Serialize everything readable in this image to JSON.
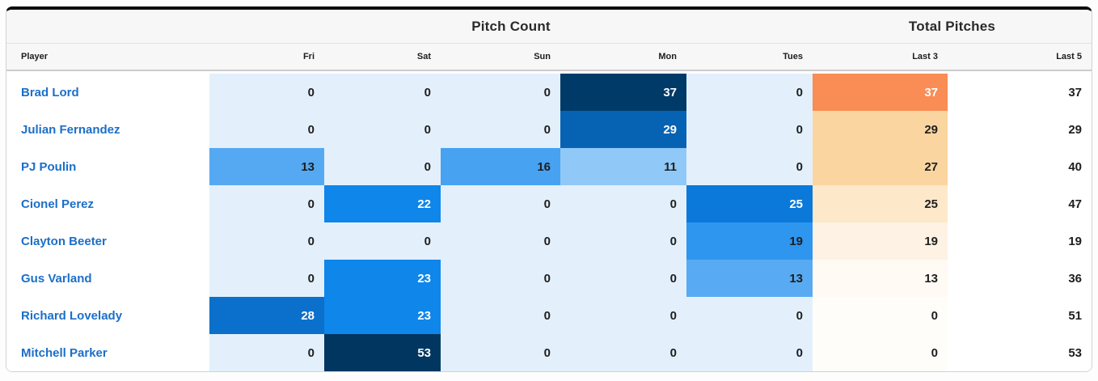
{
  "card": {
    "group_headers": {
      "pitch_count": "Pitch Count",
      "total_pitches": "Total Pitches"
    },
    "columns": [
      "Player",
      "Fri",
      "Sat",
      "Sun",
      "Mon",
      "Tues",
      "Last 3",
      "Last 5"
    ]
  },
  "colors": {
    "accent_link": "#1b6fc8",
    "header_bg": "#f7f7f7",
    "card_top_border": "#0d0d0d",
    "blue_scale_low": "#e3f0fc",
    "blue_scale_high": "#00365f",
    "orange_scale_low": "#fffdfa",
    "orange_scale_high": "#fa8c56"
  },
  "chart_data": {
    "type": "heatmap",
    "title": "Pitch Count",
    "subtitle": "Total Pitches",
    "rows": [
      "Brad Lord",
      "Julian Fernandez",
      "PJ Poulin",
      "Cionel Perez",
      "Clayton Beeter",
      "Gus Varland",
      "Richard Lovelady",
      "Mitchell Parker"
    ],
    "columns": [
      "Fri",
      "Sat",
      "Sun",
      "Mon",
      "Tues"
    ],
    "values": [
      [
        0,
        0,
        0,
        37,
        0
      ],
      [
        0,
        0,
        0,
        29,
        0
      ],
      [
        13,
        0,
        16,
        11,
        0
      ],
      [
        0,
        22,
        0,
        0,
        25
      ],
      [
        0,
        0,
        0,
        0,
        19
      ],
      [
        0,
        23,
        0,
        0,
        13
      ],
      [
        28,
        23,
        0,
        0,
        0
      ],
      [
        0,
        53,
        0,
        0,
        0
      ]
    ],
    "last_3": [
      37,
      29,
      27,
      25,
      19,
      13,
      0,
      0
    ],
    "last_5": [
      37,
      29,
      40,
      47,
      19,
      36,
      51,
      53
    ],
    "legend_position": "none",
    "grid": false,
    "palettes": {
      "day_columns": "blues",
      "last_3_column": "oranges",
      "last_5_column": "white"
    }
  },
  "table": {
    "rows": [
      {
        "player": "Brad Lord",
        "cells": [
          {
            "v": "0",
            "bg": "#e3f0fc",
            "fg": "#1e1e1e"
          },
          {
            "v": "0",
            "bg": "#e3f0fc",
            "fg": "#1e1e1e"
          },
          {
            "v": "0",
            "bg": "#e3f0fc",
            "fg": "#1e1e1e"
          },
          {
            "v": "37",
            "bg": "#003a68",
            "fg": "#ffffff"
          },
          {
            "v": "0",
            "bg": "#e3f0fc",
            "fg": "#1e1e1e"
          }
        ],
        "last3": {
          "v": "37",
          "bg": "#fa8c56",
          "fg": "#ffffff"
        },
        "last5": "37"
      },
      {
        "player": "Julian Fernandez",
        "cells": [
          {
            "v": "0",
            "bg": "#e3f0fc",
            "fg": "#1e1e1e"
          },
          {
            "v": "0",
            "bg": "#e3f0fc",
            "fg": "#1e1e1e"
          },
          {
            "v": "0",
            "bg": "#e3f0fc",
            "fg": "#1e1e1e"
          },
          {
            "v": "29",
            "bg": "#0663b4",
            "fg": "#ffffff"
          },
          {
            "v": "0",
            "bg": "#e3f0fc",
            "fg": "#1e1e1e"
          }
        ],
        "last3": {
          "v": "29",
          "bg": "#fbd5a0",
          "fg": "#1e1e1e"
        },
        "last5": "29"
      },
      {
        "player": "PJ Poulin",
        "cells": [
          {
            "v": "13",
            "bg": "#55a9f2",
            "fg": "#1e1e1e"
          },
          {
            "v": "0",
            "bg": "#e3f0fc",
            "fg": "#1e1e1e"
          },
          {
            "v": "16",
            "bg": "#47a2f1",
            "fg": "#1e1e1e"
          },
          {
            "v": "11",
            "bg": "#90c8f7",
            "fg": "#1e1e1e"
          },
          {
            "v": "0",
            "bg": "#e3f0fc",
            "fg": "#1e1e1e"
          }
        ],
        "last3": {
          "v": "27",
          "bg": "#fbd5a0",
          "fg": "#1e1e1e"
        },
        "last5": "40"
      },
      {
        "player": "Cionel Perez",
        "cells": [
          {
            "v": "0",
            "bg": "#e3f0fc",
            "fg": "#1e1e1e"
          },
          {
            "v": "22",
            "bg": "#0e86ea",
            "fg": "#ffffff"
          },
          {
            "v": "0",
            "bg": "#e3f0fc",
            "fg": "#1e1e1e"
          },
          {
            "v": "0",
            "bg": "#e3f0fc",
            "fg": "#1e1e1e"
          },
          {
            "v": "25",
            "bg": "#0b79da",
            "fg": "#ffffff"
          }
        ],
        "last3": {
          "v": "25",
          "bg": "#fde8ca",
          "fg": "#1e1e1e"
        },
        "last5": "47"
      },
      {
        "player": "Clayton Beeter",
        "cells": [
          {
            "v": "0",
            "bg": "#e3f0fc",
            "fg": "#1e1e1e"
          },
          {
            "v": "0",
            "bg": "#e3f0fc",
            "fg": "#1e1e1e"
          },
          {
            "v": "0",
            "bg": "#e3f0fc",
            "fg": "#1e1e1e"
          },
          {
            "v": "0",
            "bg": "#e3f0fc",
            "fg": "#1e1e1e"
          },
          {
            "v": "19",
            "bg": "#2e96ef",
            "fg": "#1e1e1e"
          }
        ],
        "last3": {
          "v": "19",
          "bg": "#fdf2e3",
          "fg": "#1e1e1e"
        },
        "last5": "19"
      },
      {
        "player": "Gus Varland",
        "cells": [
          {
            "v": "0",
            "bg": "#e3f0fc",
            "fg": "#1e1e1e"
          },
          {
            "v": "23",
            "bg": "#0e86ea",
            "fg": "#ffffff"
          },
          {
            "v": "0",
            "bg": "#e3f0fc",
            "fg": "#1e1e1e"
          },
          {
            "v": "0",
            "bg": "#e3f0fc",
            "fg": "#1e1e1e"
          },
          {
            "v": "13",
            "bg": "#58abf2",
            "fg": "#1e1e1e"
          }
        ],
        "last3": {
          "v": "13",
          "bg": "#fffaf3",
          "fg": "#1e1e1e"
        },
        "last5": "36"
      },
      {
        "player": "Richard Lovelady",
        "cells": [
          {
            "v": "28",
            "bg": "#0a70cb",
            "fg": "#ffffff"
          },
          {
            "v": "23",
            "bg": "#0e86ea",
            "fg": "#ffffff"
          },
          {
            "v": "0",
            "bg": "#e3f0fc",
            "fg": "#1e1e1e"
          },
          {
            "v": "0",
            "bg": "#e3f0fc",
            "fg": "#1e1e1e"
          },
          {
            "v": "0",
            "bg": "#e3f0fc",
            "fg": "#1e1e1e"
          }
        ],
        "last3": {
          "v": "0",
          "bg": "#fffdfa",
          "fg": "#1e1e1e"
        },
        "last5": "51"
      },
      {
        "player": "Mitchell Parker",
        "cells": [
          {
            "v": "0",
            "bg": "#e3f0fc",
            "fg": "#1e1e1e"
          },
          {
            "v": "53",
            "bg": "#00365f",
            "fg": "#ffffff"
          },
          {
            "v": "0",
            "bg": "#e3f0fc",
            "fg": "#1e1e1e"
          },
          {
            "v": "0",
            "bg": "#e3f0fc",
            "fg": "#1e1e1e"
          },
          {
            "v": "0",
            "bg": "#e3f0fc",
            "fg": "#1e1e1e"
          }
        ],
        "last3": {
          "v": "0",
          "bg": "#fffdfa",
          "fg": "#1e1e1e"
        },
        "last5": "53"
      }
    ]
  }
}
